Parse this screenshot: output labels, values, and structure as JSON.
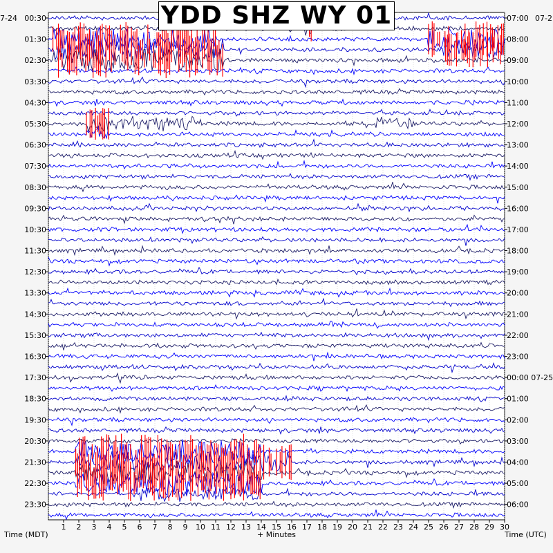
{
  "title": "YDD SHZ WY 01",
  "corner_left_date": "7-24",
  "corner_right_date": "07-2",
  "left_axis_caption": "Time (MDT)",
  "right_axis_caption": "Time (UTC)",
  "x_axis_caption": "+ Minutes",
  "colors": {
    "background": "#f5f5f5",
    "plot_background": "#ffffff",
    "trace_colors": [
      "#0000cc",
      "#1a1a66",
      "#0000ff"
    ],
    "clipped": "#ff0000"
  },
  "chart_data": {
    "type": "helicorder",
    "title": "YDD SHZ WY 01",
    "xlabel": "+ Minutes",
    "xlim": [
      0,
      30
    ],
    "x_ticks": [
      1,
      2,
      3,
      4,
      5,
      6,
      7,
      8,
      9,
      10,
      11,
      12,
      13,
      14,
      15,
      16,
      17,
      18,
      19,
      20,
      21,
      22,
      23,
      24,
      25,
      26,
      27,
      28,
      29,
      30
    ],
    "left_tick_labels": [
      "00:30",
      "01:30",
      "02:30",
      "03:30",
      "04:30",
      "05:30",
      "06:30",
      "07:30",
      "08:30",
      "09:30",
      "10:30",
      "11:30",
      "12:30",
      "13:30",
      "14:30",
      "15:30",
      "16:30",
      "17:30",
      "18:30",
      "19:30",
      "20:30",
      "21:30",
      "22:30",
      "23:30"
    ],
    "right_tick_labels": [
      "07:00",
      "08:00",
      "09:00",
      "10:00",
      "11:00",
      "12:00",
      "13:00",
      "14:00",
      "15:00",
      "16:00",
      "17:00",
      "18:00",
      "19:00",
      "20:00",
      "21:00",
      "22:00",
      "23:00",
      "00:00 07-25",
      "01:00",
      "02:00",
      "03:00",
      "04:00",
      "05:00",
      "06:00"
    ],
    "rows_per_hour": 2,
    "grid": true,
    "events": [
      {
        "row": 0,
        "minutes": [
          11.5,
          17.5
        ],
        "level": "high",
        "clipped": false
      },
      {
        "row": 1,
        "minutes": [
          16.8,
          17.4
        ],
        "level": "clipped",
        "clipped": true
      },
      {
        "row": 2,
        "minutes": [
          0.3,
          11.0
        ],
        "level": "clipped",
        "clipped": true
      },
      {
        "row": 3,
        "minutes": [
          0.3,
          11.5
        ],
        "level": "clipped",
        "clipped": true
      },
      {
        "row": 4,
        "minutes": [
          0.3,
          11.5
        ],
        "level": "clipped",
        "clipped": true
      },
      {
        "row": 2,
        "minutes": [
          25.0,
          30.0
        ],
        "level": "clipped",
        "clipped": true
      },
      {
        "row": 3,
        "minutes": [
          26.0,
          30.0
        ],
        "level": "clipped",
        "clipped": true
      },
      {
        "row": 10,
        "minutes": [
          2.5,
          4.0
        ],
        "level": "clipped",
        "clipped": true
      },
      {
        "row": 11,
        "minutes": [
          2.5,
          4.0
        ],
        "level": "high",
        "clipped": false
      },
      {
        "row": 10,
        "minutes": [
          4.0,
          10.0
        ],
        "level": "high",
        "clipped": false
      },
      {
        "row": 10,
        "minutes": [
          21.5,
          24.0
        ],
        "level": "high",
        "clipped": false
      },
      {
        "row": 41,
        "minutes": [
          1.8,
          14.0
        ],
        "level": "clipped",
        "clipped": true
      },
      {
        "row": 42,
        "minutes": [
          1.8,
          16.0
        ],
        "level": "clipped",
        "clipped": true
      },
      {
        "row": 43,
        "minutes": [
          1.8,
          14.0
        ],
        "level": "clipped",
        "clipped": true
      },
      {
        "row": 44,
        "minutes": [
          1.8,
          14.0
        ],
        "level": "clipped",
        "clipped": true
      },
      {
        "row": 45,
        "minutes": [
          6.0,
          14.0
        ],
        "level": "high",
        "clipped": false
      }
    ]
  }
}
